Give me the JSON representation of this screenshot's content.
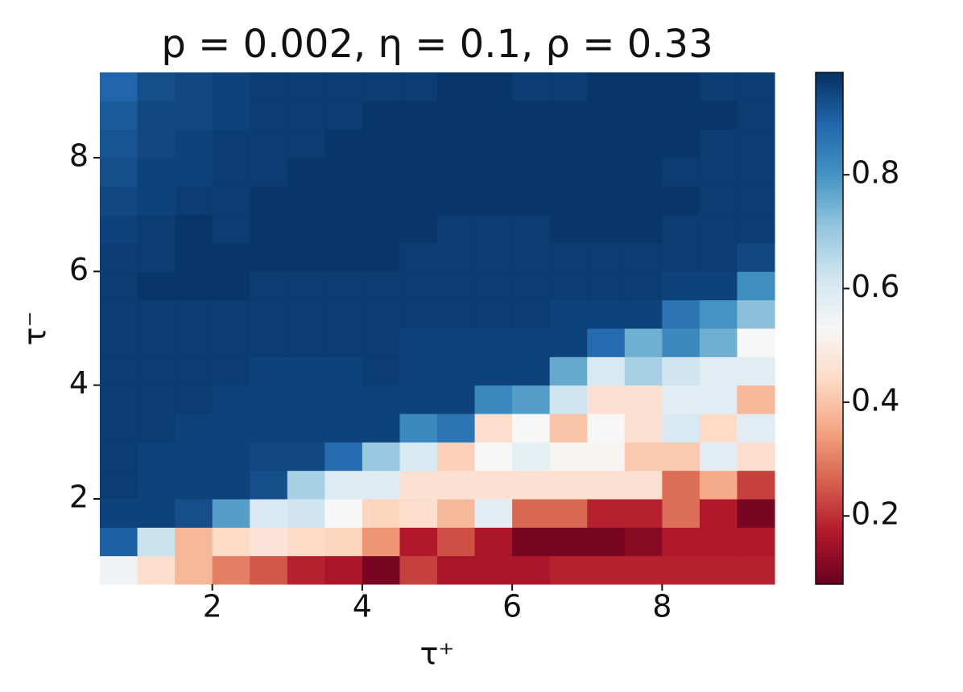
{
  "chart_data": {
    "type": "heatmap",
    "title": "p = 0.002, η = 0.1, ρ = 0.33",
    "xlabel": "τ⁺",
    "ylabel": "τ⁻",
    "x": [
      0.75,
      1.25,
      1.75,
      2.25,
      2.75,
      3.25,
      3.75,
      4.25,
      4.75,
      5.25,
      5.75,
      6.25,
      6.75,
      7.25,
      7.75,
      8.25,
      8.75,
      9.25
    ],
    "y": [
      0.75,
      1.25,
      1.75,
      2.25,
      2.75,
      3.25,
      3.75,
      4.25,
      4.75,
      5.25,
      5.75,
      6.25,
      6.75,
      7.25,
      7.75,
      8.25,
      8.75,
      9.25
    ],
    "xlim": [
      0.5,
      9.5
    ],
    "ylim": [
      0.5,
      9.5
    ],
    "xticks": [
      2,
      4,
      6,
      8
    ],
    "yticks": [
      2,
      4,
      6,
      8
    ],
    "colormap": "RdBu",
    "clim": [
      0.08,
      0.98
    ],
    "cticks": [
      0.2,
      0.4,
      0.6,
      0.8
    ],
    "z": [
      [
        0.55,
        0.45,
        0.38,
        0.3,
        0.25,
        0.18,
        0.16,
        0.1,
        0.22,
        0.16,
        0.16,
        0.16,
        0.18,
        0.18,
        0.18,
        0.18,
        0.18,
        0.18
      ],
      [
        0.9,
        0.63,
        0.38,
        0.44,
        0.47,
        0.44,
        0.43,
        0.33,
        0.17,
        0.24,
        0.16,
        0.1,
        0.1,
        0.1,
        0.12,
        0.17,
        0.17,
        0.17
      ],
      [
        0.95,
        0.95,
        0.93,
        0.78,
        0.6,
        0.62,
        0.53,
        0.43,
        0.45,
        0.38,
        0.58,
        0.27,
        0.27,
        0.18,
        0.18,
        0.28,
        0.17,
        0.1
      ],
      [
        0.96,
        0.95,
        0.95,
        0.95,
        0.93,
        0.68,
        0.59,
        0.59,
        0.46,
        0.46,
        0.46,
        0.46,
        0.46,
        0.46,
        0.46,
        0.28,
        0.36,
        0.22
      ],
      [
        0.96,
        0.95,
        0.95,
        0.95,
        0.94,
        0.94,
        0.88,
        0.7,
        0.6,
        0.42,
        0.53,
        0.57,
        0.52,
        0.52,
        0.41,
        0.41,
        0.58,
        0.45
      ],
      [
        0.96,
        0.96,
        0.95,
        0.95,
        0.95,
        0.95,
        0.95,
        0.95,
        0.82,
        0.86,
        0.45,
        0.53,
        0.4,
        0.53,
        0.46,
        0.6,
        0.44,
        0.58
      ],
      [
        0.96,
        0.96,
        0.96,
        0.95,
        0.95,
        0.95,
        0.95,
        0.95,
        0.95,
        0.95,
        0.82,
        0.78,
        0.62,
        0.46,
        0.46,
        0.58,
        0.58,
        0.38
      ],
      [
        0.96,
        0.96,
        0.96,
        0.96,
        0.95,
        0.95,
        0.95,
        0.96,
        0.95,
        0.95,
        0.95,
        0.95,
        0.76,
        0.6,
        0.68,
        0.62,
        0.58,
        0.58
      ],
      [
        0.96,
        0.96,
        0.96,
        0.96,
        0.96,
        0.96,
        0.96,
        0.96,
        0.95,
        0.95,
        0.95,
        0.95,
        0.95,
        0.88,
        0.75,
        0.82,
        0.75,
        0.53
      ],
      [
        0.96,
        0.96,
        0.96,
        0.96,
        0.96,
        0.96,
        0.96,
        0.96,
        0.96,
        0.96,
        0.96,
        0.96,
        0.95,
        0.95,
        0.95,
        0.86,
        0.8,
        0.72
      ],
      [
        0.96,
        0.97,
        0.97,
        0.97,
        0.96,
        0.96,
        0.96,
        0.96,
        0.96,
        0.96,
        0.96,
        0.96,
        0.96,
        0.96,
        0.96,
        0.95,
        0.95,
        0.81
      ],
      [
        0.96,
        0.96,
        0.97,
        0.97,
        0.97,
        0.97,
        0.97,
        0.97,
        0.96,
        0.96,
        0.96,
        0.96,
        0.96,
        0.96,
        0.96,
        0.96,
        0.96,
        0.94
      ],
      [
        0.95,
        0.96,
        0.97,
        0.96,
        0.97,
        0.97,
        0.97,
        0.97,
        0.97,
        0.96,
        0.96,
        0.96,
        0.97,
        0.97,
        0.97,
        0.96,
        0.96,
        0.96
      ],
      [
        0.94,
        0.95,
        0.96,
        0.96,
        0.97,
        0.97,
        0.97,
        0.97,
        0.97,
        0.97,
        0.97,
        0.97,
        0.97,
        0.97,
        0.97,
        0.97,
        0.96,
        0.96
      ],
      [
        0.93,
        0.95,
        0.95,
        0.96,
        0.96,
        0.97,
        0.97,
        0.97,
        0.97,
        0.97,
        0.97,
        0.97,
        0.97,
        0.97,
        0.97,
        0.96,
        0.96,
        0.96
      ],
      [
        0.92,
        0.94,
        0.95,
        0.96,
        0.96,
        0.96,
        0.97,
        0.97,
        0.97,
        0.97,
        0.97,
        0.97,
        0.97,
        0.97,
        0.97,
        0.97,
        0.96,
        0.96
      ],
      [
        0.91,
        0.94,
        0.94,
        0.95,
        0.96,
        0.96,
        0.96,
        0.97,
        0.97,
        0.97,
        0.97,
        0.97,
        0.97,
        0.97,
        0.97,
        0.97,
        0.97,
        0.96
      ],
      [
        0.89,
        0.93,
        0.94,
        0.95,
        0.96,
        0.96,
        0.96,
        0.96,
        0.96,
        0.97,
        0.97,
        0.96,
        0.96,
        0.97,
        0.97,
        0.97,
        0.96,
        0.96
      ]
    ]
  }
}
